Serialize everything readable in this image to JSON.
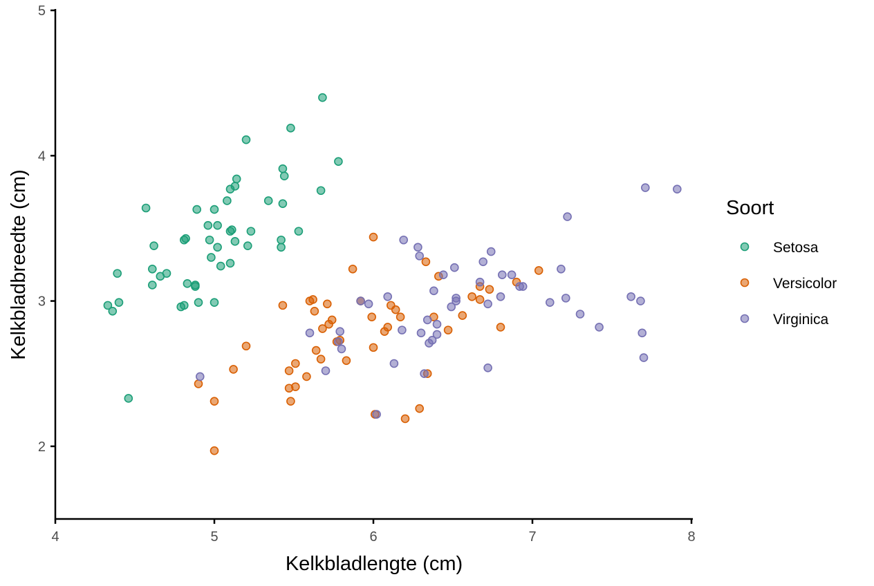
{
  "chart_data": {
    "type": "scatter",
    "title": "",
    "xlabel": "Kelkbladlengte (cm)",
    "ylabel": "Kelkbladbreedte (cm)",
    "xlim": [
      4,
      8
    ],
    "ylim": [
      1.5,
      5
    ],
    "xticks": [
      4,
      5,
      6,
      7,
      8
    ],
    "yticks": [
      2,
      3,
      4,
      5
    ],
    "grid": false,
    "legend": {
      "title": "Soort",
      "position": "right"
    },
    "series": [
      {
        "name": "Setosa",
        "color": "#1b9e77",
        "points": [
          [
            4.33,
            2.97
          ],
          [
            4.36,
            2.93
          ],
          [
            4.39,
            3.19
          ],
          [
            4.4,
            2.99
          ],
          [
            4.46,
            2.33
          ],
          [
            4.57,
            3.64
          ],
          [
            4.61,
            3.22
          ],
          [
            4.61,
            3.11
          ],
          [
            4.62,
            3.38
          ],
          [
            4.66,
            3.17
          ],
          [
            4.7,
            3.19
          ],
          [
            4.79,
            2.96
          ],
          [
            4.81,
            2.97
          ],
          [
            4.81,
            3.42
          ],
          [
            4.82,
            3.43
          ],
          [
            4.83,
            3.12
          ],
          [
            4.88,
            3.1
          ],
          [
            4.88,
            3.11
          ],
          [
            4.89,
            3.63
          ],
          [
            4.9,
            2.99
          ],
          [
            4.96,
            3.52
          ],
          [
            4.97,
            3.42
          ],
          [
            4.98,
            3.3
          ],
          [
            5.0,
            2.99
          ],
          [
            5.0,
            3.63
          ],
          [
            5.02,
            3.52
          ],
          [
            5.02,
            3.37
          ],
          [
            5.04,
            3.24
          ],
          [
            5.08,
            3.69
          ],
          [
            5.1,
            3.77
          ],
          [
            5.1,
            3.48
          ],
          [
            5.11,
            3.49
          ],
          [
            5.1,
            3.26
          ],
          [
            5.13,
            3.41
          ],
          [
            5.13,
            3.79
          ],
          [
            5.14,
            3.84
          ],
          [
            5.2,
            4.11
          ],
          [
            5.21,
            3.38
          ],
          [
            5.23,
            3.48
          ],
          [
            5.34,
            3.69
          ],
          [
            5.42,
            3.37
          ],
          [
            5.42,
            3.42
          ],
          [
            5.43,
            3.91
          ],
          [
            5.43,
            3.67
          ],
          [
            5.44,
            3.86
          ],
          [
            5.48,
            4.19
          ],
          [
            5.53,
            3.48
          ],
          [
            5.67,
            3.76
          ],
          [
            5.68,
            4.4
          ],
          [
            5.78,
            3.96
          ]
        ]
      },
      {
        "name": "Versicolor",
        "color": "#d95f02",
        "points": [
          [
            4.9,
            2.43
          ],
          [
            5.0,
            2.31
          ],
          [
            5.0,
            1.97
          ],
          [
            5.12,
            2.53
          ],
          [
            5.2,
            2.69
          ],
          [
            5.43,
            2.97
          ],
          [
            5.47,
            2.52
          ],
          [
            5.47,
            2.4
          ],
          [
            5.48,
            2.31
          ],
          [
            5.51,
            2.57
          ],
          [
            5.51,
            2.41
          ],
          [
            5.58,
            2.48
          ],
          [
            5.6,
            3.0
          ],
          [
            5.62,
            3.01
          ],
          [
            5.63,
            2.93
          ],
          [
            5.64,
            2.66
          ],
          [
            5.67,
            2.6
          ],
          [
            5.68,
            2.81
          ],
          [
            5.71,
            2.98
          ],
          [
            5.72,
            2.84
          ],
          [
            5.74,
            2.87
          ],
          [
            5.77,
            2.72
          ],
          [
            5.79,
            2.73
          ],
          [
            5.83,
            2.59
          ],
          [
            5.87,
            3.22
          ],
          [
            5.92,
            3.0
          ],
          [
            5.99,
            2.89
          ],
          [
            6.0,
            2.68
          ],
          [
            6.0,
            3.44
          ],
          [
            6.01,
            2.22
          ],
          [
            6.07,
            2.79
          ],
          [
            6.09,
            2.82
          ],
          [
            6.11,
            2.97
          ],
          [
            6.14,
            2.94
          ],
          [
            6.17,
            2.89
          ],
          [
            6.2,
            2.19
          ],
          [
            6.29,
            2.26
          ],
          [
            6.33,
            3.27
          ],
          [
            6.34,
            2.5
          ],
          [
            6.38,
            2.89
          ],
          [
            6.41,
            3.17
          ],
          [
            6.47,
            2.8
          ],
          [
            6.56,
            2.9
          ],
          [
            6.62,
            3.03
          ],
          [
            6.67,
            3.01
          ],
          [
            6.67,
            3.1
          ],
          [
            6.73,
            3.08
          ],
          [
            6.8,
            2.82
          ],
          [
            6.9,
            3.13
          ],
          [
            7.04,
            3.21
          ]
        ]
      },
      {
        "name": "Virginica",
        "color": "#7570b3",
        "points": [
          [
            4.91,
            2.48
          ],
          [
            5.6,
            2.78
          ],
          [
            5.7,
            2.52
          ],
          [
            5.78,
            2.72
          ],
          [
            5.79,
            2.79
          ],
          [
            5.8,
            2.67
          ],
          [
            5.92,
            3.0
          ],
          [
            5.97,
            2.98
          ],
          [
            6.02,
            2.22
          ],
          [
            6.09,
            3.03
          ],
          [
            6.13,
            2.57
          ],
          [
            6.18,
            2.8
          ],
          [
            6.19,
            3.42
          ],
          [
            6.28,
            3.37
          ],
          [
            6.29,
            3.31
          ],
          [
            6.3,
            2.78
          ],
          [
            6.32,
            2.5
          ],
          [
            6.34,
            2.87
          ],
          [
            6.35,
            2.71
          ],
          [
            6.37,
            2.73
          ],
          [
            6.38,
            3.07
          ],
          [
            6.4,
            2.84
          ],
          [
            6.4,
            2.77
          ],
          [
            6.44,
            3.18
          ],
          [
            6.49,
            2.96
          ],
          [
            6.51,
            3.23
          ],
          [
            6.52,
            3.02
          ],
          [
            6.52,
            3.0
          ],
          [
            6.67,
            3.13
          ],
          [
            6.69,
            3.27
          ],
          [
            6.72,
            2.54
          ],
          [
            6.72,
            2.98
          ],
          [
            6.74,
            3.34
          ],
          [
            6.8,
            3.03
          ],
          [
            6.81,
            3.18
          ],
          [
            6.87,
            3.18
          ],
          [
            6.92,
            3.1
          ],
          [
            6.94,
            3.1
          ],
          [
            7.11,
            2.99
          ],
          [
            7.18,
            3.22
          ],
          [
            7.21,
            3.02
          ],
          [
            7.22,
            3.58
          ],
          [
            7.3,
            2.91
          ],
          [
            7.42,
            2.82
          ],
          [
            7.62,
            3.03
          ],
          [
            7.68,
            3.0
          ],
          [
            7.69,
            2.78
          ],
          [
            7.7,
            2.61
          ],
          [
            7.71,
            3.78
          ],
          [
            7.91,
            3.77
          ]
        ]
      }
    ]
  }
}
